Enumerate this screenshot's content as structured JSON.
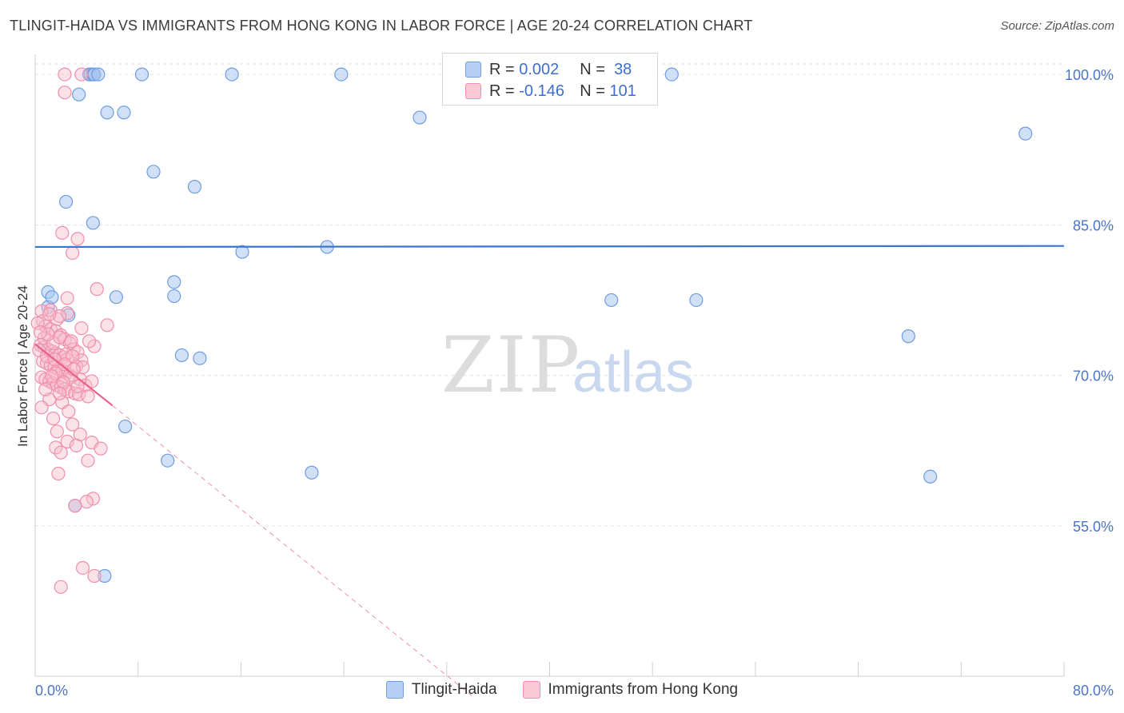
{
  "header": {
    "title": "TLINGIT-HAIDA VS IMMIGRANTS FROM HONG KONG IN LABOR FORCE | AGE 20-24 CORRELATION CHART",
    "source": "Source: ZipAtlas.com"
  },
  "watermark": {
    "zip": "ZIP",
    "atlas": "atlas"
  },
  "legend": {
    "r_label": "R =",
    "n_label": "N =",
    "series": [
      {
        "r": "0.002",
        "n": "38",
        "color": "#a9c6f0",
        "border": "#6f9be0"
      },
      {
        "r": "-0.146",
        "n": "101",
        "color": "#f7bccd",
        "border": "#ee8fab"
      }
    ]
  },
  "chart_data": {
    "type": "scatter",
    "title": "TLINGIT-HAIDA VS IMMIGRANTS FROM HONG KONG IN LABOR FORCE | AGE 20-24 CORRELATION CHART",
    "xlabel": "",
    "ylabel": "In Labor Force | Age 20-24",
    "xlim": [
      0,
      80
    ],
    "ylim": [
      40,
      102
    ],
    "x_tick_labels": [
      "0.0%",
      "80.0%"
    ],
    "y_ticks": [
      55,
      70,
      85,
      100
    ],
    "y_tick_labels": [
      "55.0%",
      "70.0%",
      "85.0%",
      "100.0%"
    ],
    "grid": true,
    "legend_position": "top-center",
    "series": [
      {
        "name": "Tlingit-Haida",
        "color": "#a9c6f0",
        "edge": "#6f9be0",
        "trend": {
          "x": [
            0,
            80
          ],
          "y": [
            82.8,
            82.9
          ],
          "color": "#3b75d0"
        },
        "points": [
          [
            4.2,
            100
          ],
          [
            4.3,
            100
          ],
          [
            4.5,
            100
          ],
          [
            4.6,
            100
          ],
          [
            4.9,
            100
          ],
          [
            8.3,
            100
          ],
          [
            15.3,
            100
          ],
          [
            23.8,
            100
          ],
          [
            49.5,
            100
          ],
          [
            3.4,
            98
          ],
          [
            5.6,
            96.2
          ],
          [
            6.9,
            96.2
          ],
          [
            29.9,
            95.7
          ],
          [
            77.0,
            94.1
          ],
          [
            9.2,
            90.3
          ],
          [
            12.4,
            88.8
          ],
          [
            2.4,
            87.3
          ],
          [
            4.5,
            85.2
          ],
          [
            22.7,
            82.8
          ],
          [
            16.1,
            82.3
          ],
          [
            1.0,
            78.3
          ],
          [
            1.0,
            76.8
          ],
          [
            1.3,
            77.8
          ],
          [
            2.6,
            76.0
          ],
          [
            6.3,
            77.8
          ],
          [
            10.8,
            79.3
          ],
          [
            10.8,
            77.9
          ],
          [
            44.8,
            77.5
          ],
          [
            51.4,
            77.5
          ],
          [
            67.9,
            73.9
          ],
          [
            11.4,
            72.0
          ],
          [
            12.8,
            71.7
          ],
          [
            7.0,
            64.9
          ],
          [
            10.3,
            61.5
          ],
          [
            21.5,
            60.3
          ],
          [
            69.6,
            59.9
          ],
          [
            3.1,
            57.0
          ],
          [
            5.4,
            50.0
          ]
        ]
      },
      {
        "name": "Immigrants from Hong Kong",
        "color": "#f7bccd",
        "edge": "#ee8fab",
        "trend": {
          "x": [
            0,
            6.0
          ],
          "y": [
            73.1,
            67.0
          ],
          "dash_to": [
            34.0,
            38.0
          ],
          "color": "#e8608a"
        },
        "points": [
          [
            2.3,
            100
          ],
          [
            3.6,
            100
          ],
          [
            2.3,
            98.2
          ],
          [
            2.1,
            84.2
          ],
          [
            3.3,
            83.6
          ],
          [
            2.9,
            82.2
          ],
          [
            4.8,
            78.6
          ],
          [
            2.5,
            77.7
          ],
          [
            1.2,
            76.5
          ],
          [
            2.5,
            76.2
          ],
          [
            1.7,
            75.6
          ],
          [
            5.6,
            75.0
          ],
          [
            0.5,
            76.4
          ],
          [
            0.6,
            75.4
          ],
          [
            0.8,
            74.9
          ],
          [
            1.2,
            74.6
          ],
          [
            1.6,
            74.4
          ],
          [
            2.0,
            74.0
          ],
          [
            2.3,
            73.6
          ],
          [
            2.7,
            73.2
          ],
          [
            0.4,
            73.0
          ],
          [
            0.7,
            72.8
          ],
          [
            1.0,
            72.6
          ],
          [
            1.3,
            72.4
          ],
          [
            1.6,
            72.2
          ],
          [
            1.9,
            72.0
          ],
          [
            2.2,
            71.8
          ],
          [
            2.5,
            71.6
          ],
          [
            0.6,
            71.4
          ],
          [
            0.9,
            71.2
          ],
          [
            1.2,
            71.0
          ],
          [
            1.5,
            70.8
          ],
          [
            1.8,
            70.6
          ],
          [
            2.1,
            70.4
          ],
          [
            2.4,
            70.2
          ],
          [
            2.7,
            70.0
          ],
          [
            0.5,
            69.8
          ],
          [
            0.8,
            69.6
          ],
          [
            1.1,
            69.4
          ],
          [
            1.4,
            69.2
          ],
          [
            1.7,
            69.0
          ],
          [
            2.0,
            68.8
          ],
          [
            2.3,
            68.6
          ],
          [
            2.6,
            68.4
          ],
          [
            3.0,
            72.6
          ],
          [
            3.3,
            72.3
          ],
          [
            3.6,
            71.5
          ],
          [
            3.2,
            70.9
          ],
          [
            3.5,
            69.6
          ],
          [
            3.9,
            69.0
          ],
          [
            3.1,
            68.2
          ],
          [
            3.4,
            68.1
          ],
          [
            4.1,
            67.9
          ],
          [
            4.6,
            72.9
          ],
          [
            4.2,
            73.4
          ],
          [
            3.6,
            74.7
          ],
          [
            1.9,
            75.9
          ],
          [
            1.1,
            76.1
          ],
          [
            0.7,
            73.7
          ],
          [
            1.4,
            73.2
          ],
          [
            2.4,
            72.1
          ],
          [
            2.9,
            71.9
          ],
          [
            1.6,
            70.2
          ],
          [
            2.8,
            69.8
          ],
          [
            3.7,
            70.8
          ],
          [
            4.4,
            69.4
          ],
          [
            1.1,
            67.6
          ],
          [
            2.1,
            67.3
          ],
          [
            0.5,
            66.8
          ],
          [
            2.6,
            66.4
          ],
          [
            1.4,
            65.7
          ],
          [
            2.9,
            65.1
          ],
          [
            1.7,
            64.4
          ],
          [
            3.5,
            64.1
          ],
          [
            2.5,
            63.4
          ],
          [
            3.2,
            63.0
          ],
          [
            4.4,
            63.3
          ],
          [
            1.6,
            62.8
          ],
          [
            2.0,
            62.3
          ],
          [
            5.1,
            62.7
          ],
          [
            4.1,
            61.5
          ],
          [
            1.8,
            60.2
          ],
          [
            4.5,
            57.7
          ],
          [
            4.0,
            57.4
          ],
          [
            3.1,
            57.0
          ],
          [
            3.7,
            50.8
          ],
          [
            4.6,
            50.0
          ],
          [
            2.0,
            48.9
          ],
          [
            1.0,
            74.1
          ],
          [
            1.9,
            73.8
          ],
          [
            2.8,
            73.4
          ],
          [
            0.3,
            72.5
          ],
          [
            0.9,
            71.9
          ],
          [
            1.5,
            71.6
          ],
          [
            2.3,
            71.1
          ],
          [
            3.0,
            70.6
          ],
          [
            1.3,
            69.9
          ],
          [
            2.2,
            69.3
          ],
          [
            3.3,
            68.9
          ],
          [
            0.8,
            68.6
          ],
          [
            1.9,
            68.2
          ],
          [
            0.2,
            75.2
          ],
          [
            0.4,
            74.3
          ]
        ]
      }
    ]
  },
  "bottom_legend": [
    "Tlingit-Haida",
    "Immigrants from Hong Kong"
  ]
}
